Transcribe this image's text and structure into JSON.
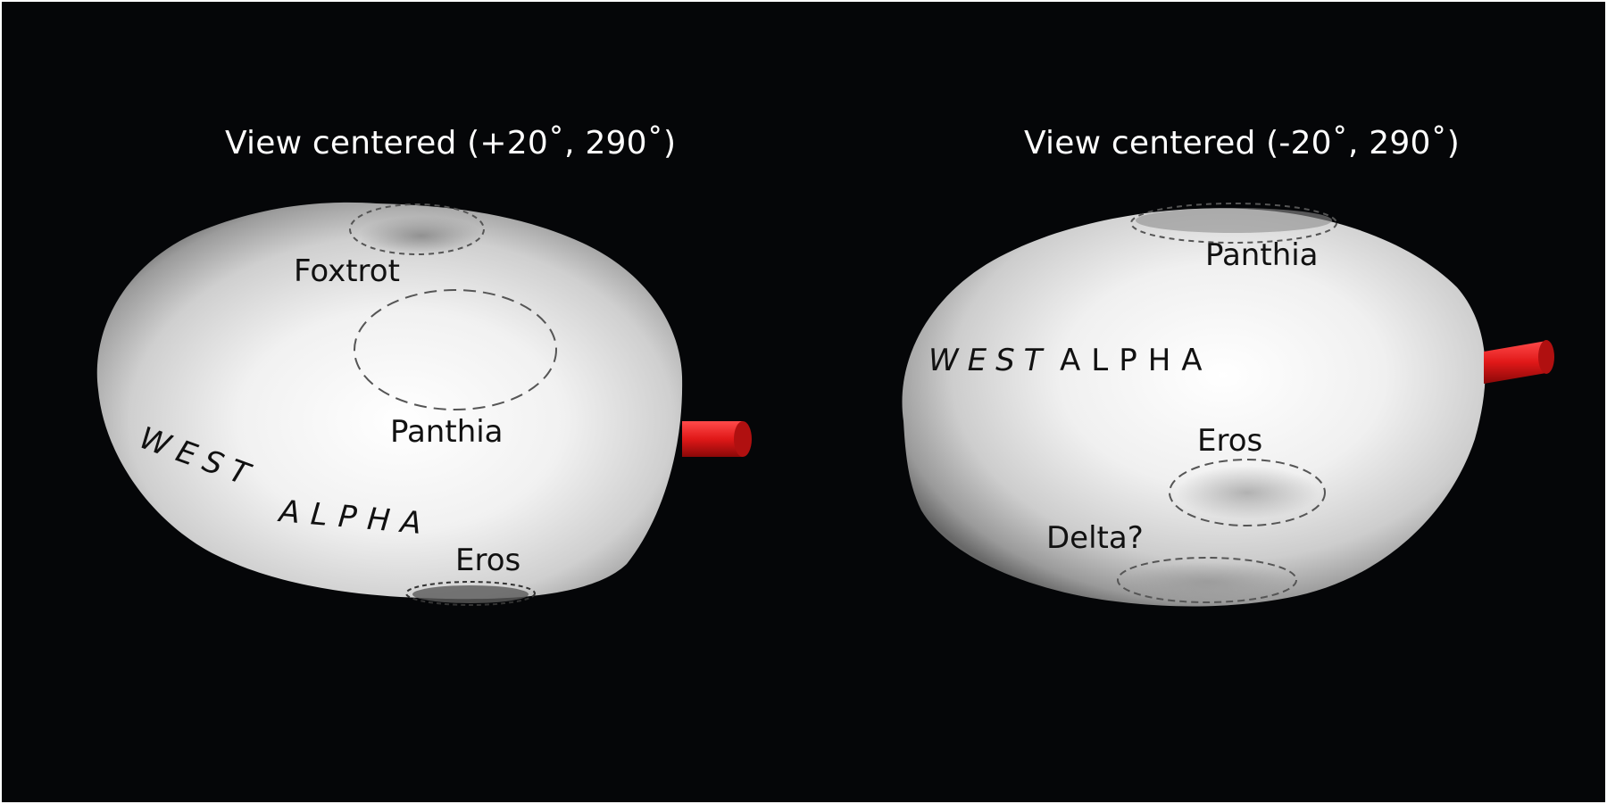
{
  "left_view": {
    "title": "View centered (+20˚, 290˚)",
    "labels": {
      "foxtrot": "Foxtrot",
      "panthia": "Panthia",
      "west": "WEST",
      "alpha": "ALPHA",
      "eros": "Eros"
    }
  },
  "right_view": {
    "title": "View centered (-20˚, 290˚)",
    "labels": {
      "panthia": "Panthia",
      "west": "WEST",
      "alpha": "ALPHA",
      "eros": "Eros",
      "delta": "Delta?"
    }
  },
  "colors": {
    "background": "#050608",
    "body": "#e8e8e8",
    "pole_marker": "#e01818",
    "outline": "#555555"
  }
}
